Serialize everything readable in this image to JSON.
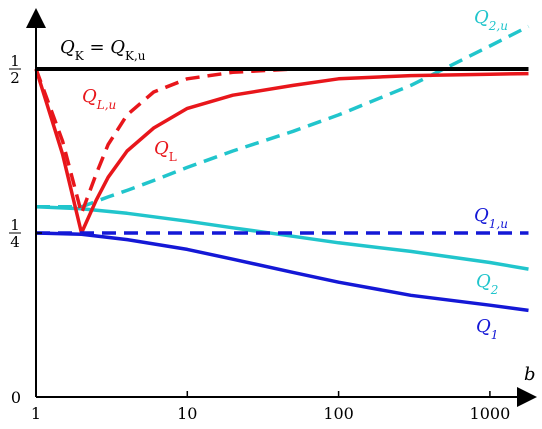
{
  "chart_data": {
    "type": "line",
    "title": "",
    "xlabel": "b",
    "ylabel": "",
    "x_scale": "log",
    "xlim": [
      1,
      1800
    ],
    "ylim": [
      0,
      0.62
    ],
    "x_ticks": [
      {
        "value": 1,
        "label": "1"
      },
      {
        "value": 10,
        "label": "10"
      },
      {
        "value": 100,
        "label": "100"
      },
      {
        "value": 1000,
        "label": "1000"
      }
    ],
    "y_ticks": [
      {
        "value": 0,
        "label": "0",
        "frac": false
      },
      {
        "value": 0.25,
        "num": "1",
        "den": "4",
        "frac": true
      },
      {
        "value": 0.5,
        "num": "1",
        "den": "2",
        "frac": true
      }
    ],
    "grid": false,
    "series": [
      {
        "key": "QK",
        "label_main": "Q",
        "label_sub": "K",
        "label_suffix": " = Q",
        "label_suffix_sub": "K,u",
        "color": "#000000",
        "dash": false,
        "x": [
          1,
          1800
        ],
        "y": [
          0.5,
          0.5
        ]
      },
      {
        "key": "QLu",
        "label_main": "Q",
        "label_sub": "L,u",
        "color": "#e8161b",
        "dash": true,
        "x": [
          1,
          1.5,
          2,
          2.5,
          3,
          4,
          6,
          10,
          20,
          50,
          100,
          300,
          1000,
          1800
        ],
        "y": [
          0.5,
          0.39,
          0.28,
          0.34,
          0.385,
          0.43,
          0.465,
          0.485,
          0.495,
          0.5,
          0.5,
          0.5,
          0.5,
          0.5
        ]
      },
      {
        "key": "QL",
        "label_main": "Q",
        "label_sub": "L",
        "color": "#e8161b",
        "dash": false,
        "x": [
          1,
          1.5,
          2,
          2.5,
          3,
          4,
          6,
          10,
          20,
          50,
          100,
          300,
          1000,
          1800
        ],
        "y": [
          0.5,
          0.37,
          0.25,
          0.3,
          0.335,
          0.375,
          0.41,
          0.44,
          0.46,
          0.475,
          0.485,
          0.49,
          0.492,
          0.493
        ]
      },
      {
        "key": "Q2u",
        "label_main": "Q",
        "label_sub": "2,u",
        "color": "#21c5cc",
        "dash": true,
        "x": [
          1,
          1.5,
          2,
          3,
          4,
          6,
          10,
          20,
          50,
          100,
          300,
          1000,
          1800
        ],
        "y": [
          0.29,
          0.29,
          0.29,
          0.305,
          0.315,
          0.33,
          0.35,
          0.375,
          0.405,
          0.43,
          0.475,
          0.535,
          0.565
        ]
      },
      {
        "key": "Q2",
        "label_main": "Q",
        "label_sub": "2",
        "color": "#21c5cc",
        "dash": false,
        "x": [
          1,
          2,
          4,
          10,
          20,
          50,
          100,
          300,
          1000,
          1800
        ],
        "y": [
          0.29,
          0.287,
          0.28,
          0.268,
          0.258,
          0.245,
          0.235,
          0.222,
          0.205,
          0.195
        ]
      },
      {
        "key": "Q1u",
        "label_main": "Q",
        "label_sub": "1,u",
        "color": "#1418d6",
        "dash": true,
        "x": [
          1,
          1800
        ],
        "y": [
          0.25,
          0.25
        ]
      },
      {
        "key": "Q1",
        "label_main": "Q",
        "label_sub": "1",
        "color": "#1418d6",
        "dash": false,
        "x": [
          1,
          2,
          4,
          10,
          20,
          50,
          100,
          300,
          1000,
          1800
        ],
        "y": [
          0.25,
          0.248,
          0.24,
          0.225,
          0.21,
          0.19,
          0.175,
          0.155,
          0.14,
          0.132
        ]
      }
    ]
  }
}
